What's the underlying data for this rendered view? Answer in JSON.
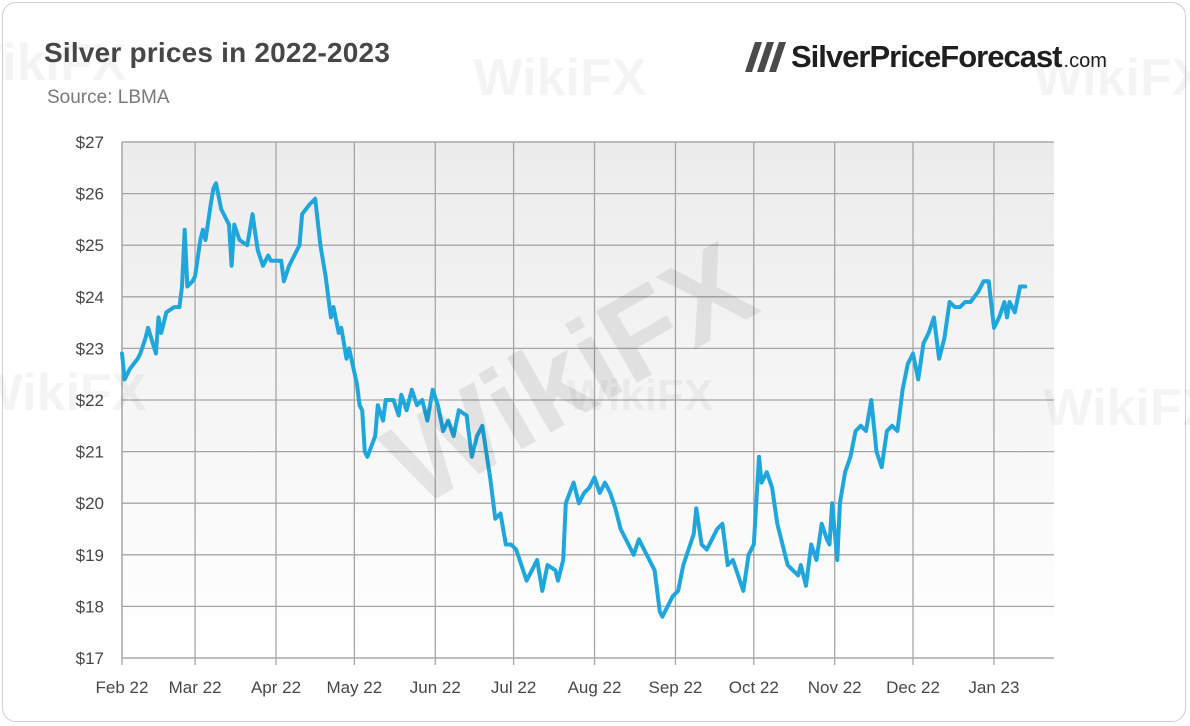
{
  "header": {
    "title": "Silver prices in 2022-2023",
    "subtitle": "Source: LBMA",
    "brand_name": "SilverPriceForecast",
    "brand_domain": ".com"
  },
  "watermark": "WikiFX",
  "colors": {
    "line": "#1fa6dc",
    "grid": "#a6a6a6",
    "plot_bg_top": "#ececec",
    "plot_bg_bottom": "#ffffff",
    "text": "#474747"
  },
  "chart_data": {
    "type": "line",
    "title": "Silver prices in 2022-2023",
    "subtitle": "Source: LBMA",
    "xlabel": "",
    "ylabel": "",
    "x_ticks": [
      "Feb 22",
      "Mar 22",
      "Apr 22",
      "May 22",
      "Jun 22",
      "Jul 22",
      "Aug 22",
      "Sep 22",
      "Oct 22",
      "Nov 22",
      "Dec 22",
      "Jan 23"
    ],
    "y_ticks": [
      "$17",
      "$18",
      "$19",
      "$20",
      "$21",
      "$22",
      "$23",
      "$24",
      "$25",
      "$26",
      "$27"
    ],
    "ylim": [
      17,
      27
    ],
    "xlim": [
      "2022-02-01",
      "2023-01-24"
    ],
    "grid": true,
    "legend": "none",
    "series": [
      {
        "name": "",
        "points": [
          [
            "2022-02-01",
            22.9
          ],
          [
            "2022-02-02",
            22.4
          ],
          [
            "2022-02-04",
            22.6
          ],
          [
            "2022-02-07",
            22.8
          ],
          [
            "2022-02-08",
            22.9
          ],
          [
            "2022-02-10",
            23.2
          ],
          [
            "2022-02-11",
            23.4
          ],
          [
            "2022-02-14",
            22.9
          ],
          [
            "2022-02-15",
            23.6
          ],
          [
            "2022-02-16",
            23.3
          ],
          [
            "2022-02-18",
            23.7
          ],
          [
            "2022-02-21",
            23.8
          ],
          [
            "2022-02-23",
            23.8
          ],
          [
            "2022-02-24",
            24.2
          ],
          [
            "2022-02-25",
            25.3
          ],
          [
            "2022-02-26",
            24.2
          ],
          [
            "2022-02-28",
            24.3
          ],
          [
            "2022-03-01",
            24.4
          ],
          [
            "2022-03-03",
            25.1
          ],
          [
            "2022-03-04",
            25.3
          ],
          [
            "2022-03-05",
            25.1
          ],
          [
            "2022-03-07",
            25.8
          ],
          [
            "2022-03-08",
            26.1
          ],
          [
            "2022-03-09",
            26.2
          ],
          [
            "2022-03-11",
            25.7
          ],
          [
            "2022-03-14",
            25.4
          ],
          [
            "2022-03-15",
            24.6
          ],
          [
            "2022-03-16",
            25.4
          ],
          [
            "2022-03-18",
            25.1
          ],
          [
            "2022-03-21",
            25.0
          ],
          [
            "2022-03-23",
            25.6
          ],
          [
            "2022-03-25",
            24.9
          ],
          [
            "2022-03-27",
            24.6
          ],
          [
            "2022-03-29",
            24.8
          ],
          [
            "2022-03-30",
            24.7
          ],
          [
            "2022-04-03",
            24.7
          ],
          [
            "2022-04-04",
            24.3
          ],
          [
            "2022-04-06",
            24.6
          ],
          [
            "2022-04-10",
            25.0
          ],
          [
            "2022-04-11",
            25.6
          ],
          [
            "2022-04-14",
            25.8
          ],
          [
            "2022-04-16",
            25.9
          ],
          [
            "2022-04-18",
            25.0
          ],
          [
            "2022-04-20",
            24.4
          ],
          [
            "2022-04-22",
            23.6
          ],
          [
            "2022-04-23",
            23.8
          ],
          [
            "2022-04-25",
            23.3
          ],
          [
            "2022-04-26",
            23.4
          ],
          [
            "2022-04-28",
            22.8
          ],
          [
            "2022-04-29",
            23.0
          ],
          [
            "2022-05-02",
            22.3
          ],
          [
            "2022-05-03",
            21.9
          ],
          [
            "2022-05-04",
            21.8
          ],
          [
            "2022-05-05",
            21.0
          ],
          [
            "2022-05-06",
            20.9
          ],
          [
            "2022-05-09",
            21.3
          ],
          [
            "2022-05-10",
            21.9
          ],
          [
            "2022-05-12",
            21.6
          ],
          [
            "2022-05-13",
            22.0
          ],
          [
            "2022-05-16",
            22.0
          ],
          [
            "2022-05-18",
            21.7
          ],
          [
            "2022-05-19",
            22.1
          ],
          [
            "2022-05-21",
            21.8
          ],
          [
            "2022-05-23",
            22.2
          ],
          [
            "2022-05-25",
            21.9
          ],
          [
            "2022-05-27",
            22.0
          ],
          [
            "2022-05-29",
            21.6
          ],
          [
            "2022-05-31",
            22.2
          ],
          [
            "2022-06-02",
            21.9
          ],
          [
            "2022-06-04",
            21.4
          ],
          [
            "2022-06-06",
            21.6
          ],
          [
            "2022-06-08",
            21.3
          ],
          [
            "2022-06-10",
            21.8
          ],
          [
            "2022-06-13",
            21.7
          ],
          [
            "2022-06-15",
            20.9
          ],
          [
            "2022-06-17",
            21.3
          ],
          [
            "2022-06-19",
            21.5
          ],
          [
            "2022-06-22",
            20.5
          ],
          [
            "2022-06-24",
            19.7
          ],
          [
            "2022-06-26",
            19.8
          ],
          [
            "2022-06-28",
            19.2
          ],
          [
            "2022-06-30",
            19.2
          ],
          [
            "2022-07-02",
            19.1
          ],
          [
            "2022-07-04",
            18.8
          ],
          [
            "2022-07-06",
            18.5
          ],
          [
            "2022-07-08",
            18.7
          ],
          [
            "2022-07-10",
            18.9
          ],
          [
            "2022-07-12",
            18.3
          ],
          [
            "2022-07-14",
            18.8
          ],
          [
            "2022-07-17",
            18.7
          ],
          [
            "2022-07-18",
            18.5
          ],
          [
            "2022-07-20",
            18.9
          ],
          [
            "2022-07-21",
            20.0
          ],
          [
            "2022-07-24",
            20.4
          ],
          [
            "2022-07-26",
            20.0
          ],
          [
            "2022-07-28",
            20.2
          ],
          [
            "2022-07-30",
            20.3
          ],
          [
            "2022-08-01",
            20.5
          ],
          [
            "2022-08-03",
            20.2
          ],
          [
            "2022-08-05",
            20.4
          ],
          [
            "2022-08-07",
            20.2
          ],
          [
            "2022-08-09",
            19.9
          ],
          [
            "2022-08-11",
            19.5
          ],
          [
            "2022-08-14",
            19.2
          ],
          [
            "2022-08-16",
            19.0
          ],
          [
            "2022-08-18",
            19.3
          ],
          [
            "2022-08-20",
            19.1
          ],
          [
            "2022-08-22",
            18.9
          ],
          [
            "2022-08-24",
            18.7
          ],
          [
            "2022-08-26",
            17.9
          ],
          [
            "2022-08-27",
            17.8
          ],
          [
            "2022-08-29",
            18.0
          ],
          [
            "2022-08-31",
            18.2
          ],
          [
            "2022-09-02",
            18.3
          ],
          [
            "2022-09-04",
            18.8
          ],
          [
            "2022-09-06",
            19.1
          ],
          [
            "2022-09-08",
            19.4
          ],
          [
            "2022-09-09",
            19.9
          ],
          [
            "2022-09-11",
            19.2
          ],
          [
            "2022-09-13",
            19.1
          ],
          [
            "2022-09-15",
            19.3
          ],
          [
            "2022-09-17",
            19.5
          ],
          [
            "2022-09-19",
            19.6
          ],
          [
            "2022-09-21",
            18.8
          ],
          [
            "2022-09-23",
            18.9
          ],
          [
            "2022-09-25",
            18.6
          ],
          [
            "2022-09-27",
            18.3
          ],
          [
            "2022-09-29",
            19.0
          ],
          [
            "2022-10-01",
            19.2
          ],
          [
            "2022-10-03",
            20.9
          ],
          [
            "2022-10-04",
            20.4
          ],
          [
            "2022-10-06",
            20.6
          ],
          [
            "2022-10-08",
            20.3
          ],
          [
            "2022-10-10",
            19.6
          ],
          [
            "2022-10-12",
            19.2
          ],
          [
            "2022-10-14",
            18.8
          ],
          [
            "2022-10-16",
            18.7
          ],
          [
            "2022-10-18",
            18.6
          ],
          [
            "2022-10-19",
            18.8
          ],
          [
            "2022-10-21",
            18.4
          ],
          [
            "2022-10-23",
            19.2
          ],
          [
            "2022-10-25",
            18.9
          ],
          [
            "2022-10-27",
            19.6
          ],
          [
            "2022-10-29",
            19.3
          ],
          [
            "2022-10-30",
            19.2
          ],
          [
            "2022-10-31",
            20.0
          ],
          [
            "2022-11-02",
            18.9
          ],
          [
            "2022-11-03",
            20.0
          ],
          [
            "2022-11-05",
            20.6
          ],
          [
            "2022-11-07",
            20.9
          ],
          [
            "2022-11-09",
            21.4
          ],
          [
            "2022-11-11",
            21.5
          ],
          [
            "2022-11-13",
            21.4
          ],
          [
            "2022-11-15",
            22.0
          ],
          [
            "2022-11-17",
            21.0
          ],
          [
            "2022-11-19",
            20.7
          ],
          [
            "2022-11-21",
            21.4
          ],
          [
            "2022-11-23",
            21.5
          ],
          [
            "2022-11-25",
            21.4
          ],
          [
            "2022-11-27",
            22.2
          ],
          [
            "2022-11-29",
            22.7
          ],
          [
            "2022-12-01",
            22.9
          ],
          [
            "2022-12-03",
            22.4
          ],
          [
            "2022-12-05",
            23.1
          ],
          [
            "2022-12-07",
            23.3
          ],
          [
            "2022-12-09",
            23.6
          ],
          [
            "2022-12-11",
            22.8
          ],
          [
            "2022-12-13",
            23.2
          ],
          [
            "2022-12-15",
            23.9
          ],
          [
            "2022-12-17",
            23.8
          ],
          [
            "2022-12-19",
            23.8
          ],
          [
            "2022-12-21",
            23.9
          ],
          [
            "2022-12-23",
            23.9
          ],
          [
            "2022-12-26",
            24.1
          ],
          [
            "2022-12-28",
            24.3
          ],
          [
            "2022-12-30",
            24.3
          ],
          [
            "2023-01-01",
            23.4
          ],
          [
            "2023-01-03",
            23.6
          ],
          [
            "2023-01-05",
            23.9
          ],
          [
            "2023-01-06",
            23.6
          ],
          [
            "2023-01-07",
            23.9
          ],
          [
            "2023-01-09",
            23.7
          ],
          [
            "2023-01-11",
            24.2
          ],
          [
            "2023-01-13",
            24.2
          ]
        ]
      }
    ]
  }
}
